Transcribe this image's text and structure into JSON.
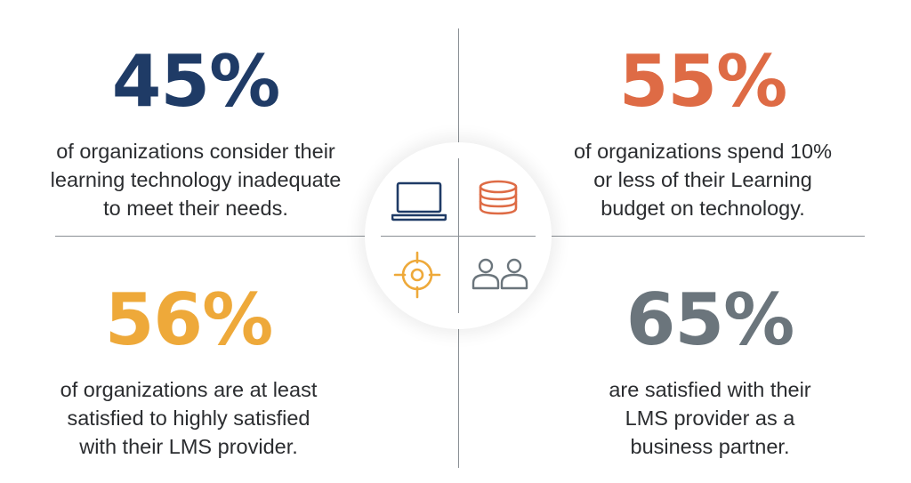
{
  "colors": {
    "navy": "#1f3b66",
    "orange": "#de6b45",
    "gold": "#eea93a",
    "gray": "#6b757c",
    "divider": "#8a8f94",
    "text": "#2b2d30"
  },
  "icons": [
    "laptop-icon",
    "coins-icon",
    "target-icon",
    "users-icon"
  ],
  "stats": {
    "top_left": {
      "value": "45%",
      "lines": [
        "of organizations consider their",
        "learning technology inadequate",
        "to meet their needs."
      ]
    },
    "top_right": {
      "value": "55%",
      "lines": [
        "of organizations spend 10%",
        "or less of their Learning",
        "budget on technology."
      ]
    },
    "bottom_left": {
      "value": "56%",
      "lines": [
        "of organizations are at least",
        "satisfied to highly satisfied",
        "with their LMS provider."
      ]
    },
    "bottom_right": {
      "value": "65%",
      "lines": [
        "are satisfied with their",
        "LMS provider as a",
        "business partner."
      ]
    }
  }
}
